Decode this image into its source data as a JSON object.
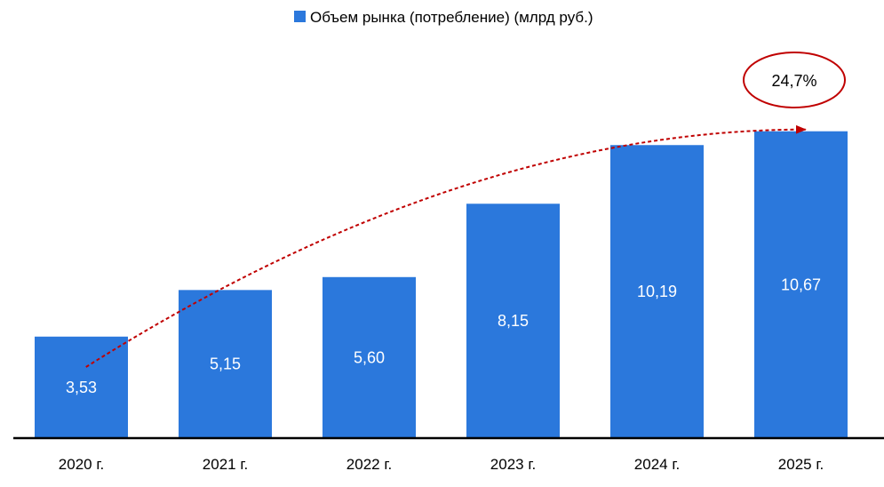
{
  "chart_data": {
    "type": "bar",
    "title": "",
    "xlabel": "",
    "ylabel": "",
    "categories": [
      "2020 г.",
      "2021 г.",
      "2022 г.",
      "2023 г.",
      "2024 г.",
      "2025 г."
    ],
    "series": [
      {
        "name": "Объем рынка (потребление) (млрд руб.)",
        "values": [
          3.53,
          5.15,
          5.6,
          8.15,
          10.19,
          10.67
        ],
        "labels": [
          "3,53",
          "5,15",
          "5,60",
          "8,15",
          "10,19",
          "10,67"
        ],
        "color": "#2b78dc"
      }
    ],
    "ylim": [
      0,
      12
    ],
    "grid": false,
    "legend": "top-center",
    "annotation": {
      "text": "24,7%",
      "from_category": "2020 г.",
      "to_category": "2025 г.",
      "arrow_color": "#c00000",
      "circle_color": "#c00000"
    }
  }
}
